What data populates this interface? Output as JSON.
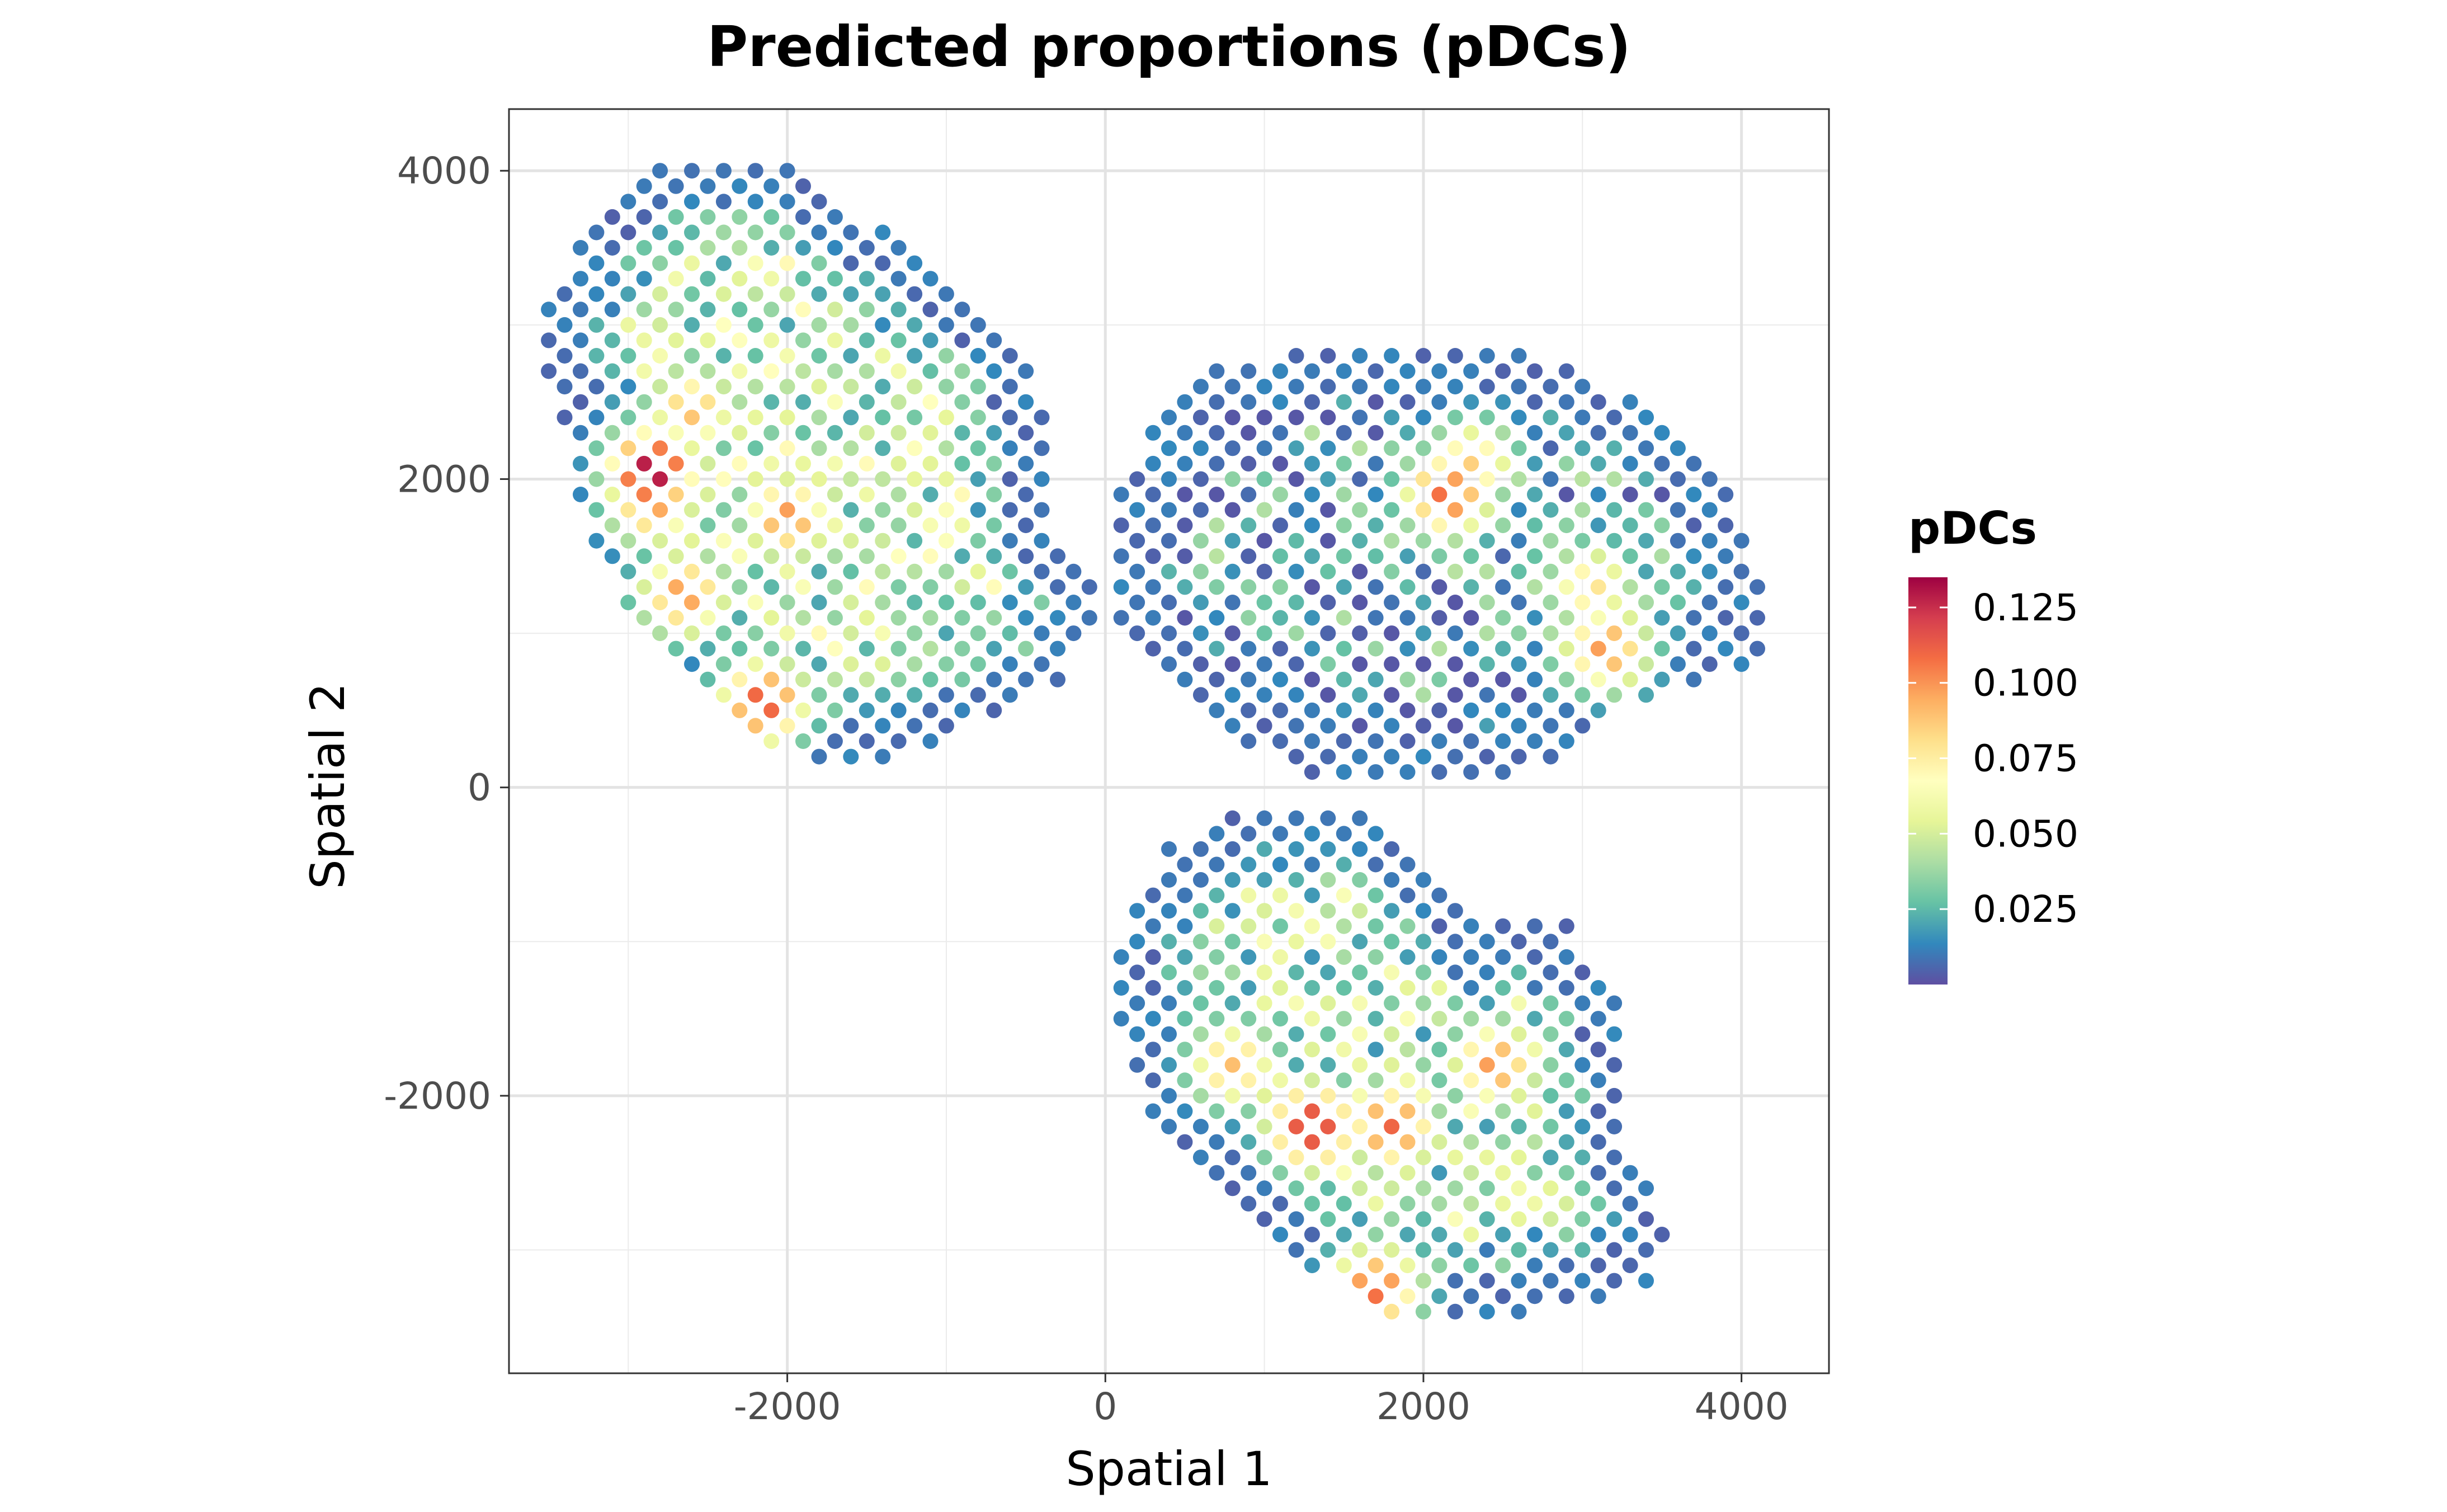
{
  "chart_data": {
    "type": "scatter",
    "title": "Predicted proportions (pDCs)",
    "xlabel": "Spatial 1",
    "ylabel": "Spatial 2",
    "xlim": [
      -3750,
      4550
    ],
    "ylim": [
      -3800,
      4400
    ],
    "x_ticks": [
      -2000,
      0,
      2000,
      4000
    ],
    "y_ticks": [
      4000,
      2000,
      0,
      -2000
    ],
    "x_tick_labels": [
      "-2000",
      "0",
      "2000",
      "4000"
    ],
    "y_tick_labels": [
      "4000",
      "2000",
      "0",
      "-2000"
    ],
    "grid": true,
    "color_scale": {
      "title": "pDCs",
      "palette": "Spectral (reversed)",
      "colors": [
        "#5E4FA2",
        "#3288BD",
        "#66C2A5",
        "#ABDDA4",
        "#E6F598",
        "#FFFFBF",
        "#FEE08B",
        "#FDAE61",
        "#F46D43",
        "#D53E4F",
        "#9E0142"
      ],
      "range": [
        0.0,
        0.135
      ],
      "ticks": [
        "0.025",
        "0.050",
        "0.075",
        "0.100",
        "0.125"
      ],
      "tick_values": [
        0.025,
        0.05,
        0.075,
        0.1,
        0.125
      ],
      "legend_position": "right"
    },
    "sections": [
      {
        "name": "upper-left tissue section",
        "polygon": [
          [
            -2900,
            4020
          ],
          [
            -2000,
            4020
          ],
          [
            -1100,
            3400
          ],
          [
            -400,
            2600
          ],
          [
            -350,
            1700
          ],
          [
            0,
            1150
          ],
          [
            -300,
            650
          ],
          [
            -1100,
            250
          ],
          [
            -1800,
            100
          ],
          [
            -2300,
            400
          ],
          [
            -2900,
            1000
          ],
          [
            -3250,
            1550
          ],
          [
            -3350,
            2100
          ],
          [
            -3550,
            2800
          ],
          [
            -3550,
            3150
          ],
          [
            -3200,
            3650
          ]
        ],
        "hotspots": [
          [
            -2850,
            2050,
            0.135
          ],
          [
            -2150,
            550,
            0.115
          ],
          [
            -2650,
            1250,
            0.1
          ],
          [
            -2600,
            2450,
            0.09
          ],
          [
            -2850,
            1850,
            0.1
          ],
          [
            -2000,
            1750,
            0.1
          ]
        ],
        "base": 0.045
      },
      {
        "name": "right tissue section",
        "polygon": [
          [
            500,
            2650
          ],
          [
            1200,
            2850
          ],
          [
            2700,
            2800
          ],
          [
            3100,
            2650
          ],
          [
            3600,
            2400
          ],
          [
            3950,
            1950
          ],
          [
            4200,
            1200
          ],
          [
            4150,
            850
          ],
          [
            3300,
            550
          ],
          [
            3000,
            250
          ],
          [
            2600,
            100
          ],
          [
            1300,
            100
          ],
          [
            700,
            400
          ],
          [
            400,
            750
          ],
          [
            50,
            1150
          ],
          [
            50,
            1950
          ]
        ],
        "hotspots": [
          [
            2150,
            1900,
            0.11
          ],
          [
            3150,
            900,
            0.1
          ],
          [
            3050,
            1300,
            0.08
          ],
          [
            2300,
            2100,
            0.085
          ]
        ],
        "base": 0.02
      },
      {
        "name": "lower tissue section",
        "polygon": [
          [
            800,
            -100
          ],
          [
            1700,
            -100
          ],
          [
            2300,
            -800
          ],
          [
            2900,
            -850
          ],
          [
            3300,
            -1550
          ],
          [
            3300,
            -2300
          ],
          [
            3600,
            -2900
          ],
          [
            3400,
            -3250
          ],
          [
            2650,
            -3400
          ],
          [
            1800,
            -3400
          ],
          [
            1100,
            -3000
          ],
          [
            700,
            -2500
          ],
          [
            300,
            -2100
          ],
          [
            100,
            -1500
          ],
          [
            50,
            -1000
          ],
          [
            400,
            -400
          ]
        ],
        "hotspots": [
          [
            1300,
            -2200,
            0.125
          ],
          [
            1800,
            -2200,
            0.11
          ],
          [
            1700,
            -3250,
            0.11
          ],
          [
            2450,
            -1800,
            0.1
          ],
          [
            800,
            -1800,
            0.09
          ]
        ],
        "base": 0.04
      }
    ]
  }
}
